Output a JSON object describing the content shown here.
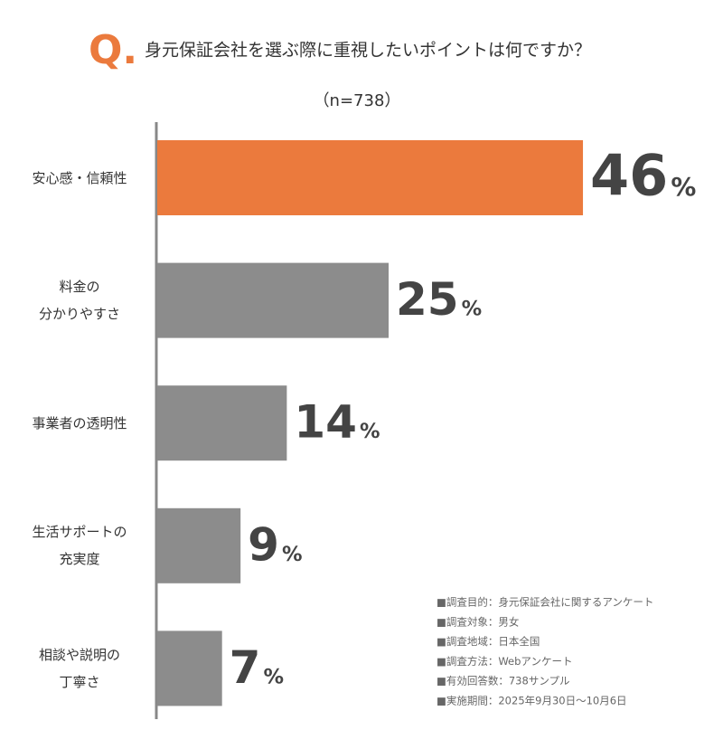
{
  "chart_data": {
    "type": "barh",
    "question_label": "Q.",
    "title": "身元保証会社を選ぶ際に重視したいポイントは何ですか？",
    "subtitle": "（n=738）",
    "categories": [
      "安心感・信頼性",
      "料金の\n分かりやすさ",
      "事業者の透明性",
      "生活サポートの\n充実度",
      "相談や説明の\n丁寧さ"
    ],
    "values": [
      46,
      25,
      14,
      9,
      7
    ],
    "value_labels": [
      "46%",
      "25%",
      "14%",
      "9%",
      "7%"
    ],
    "colors": [
      "#eb7a3d",
      "#8c8c8c",
      "#8c8c8c",
      "#8c8c8c",
      "#8c8c8c"
    ],
    "xlim": [
      0,
      50
    ],
    "notes": [
      "■調査目的：身元保証会社に関するアンケート",
      "■調査対象：男女",
      "■調査地域：日本全国",
      "■調査方法：Webアンケート",
      "■有効回答数：738サンプル",
      "■実施期間：2025年9月30日〜10月6日"
    ]
  }
}
